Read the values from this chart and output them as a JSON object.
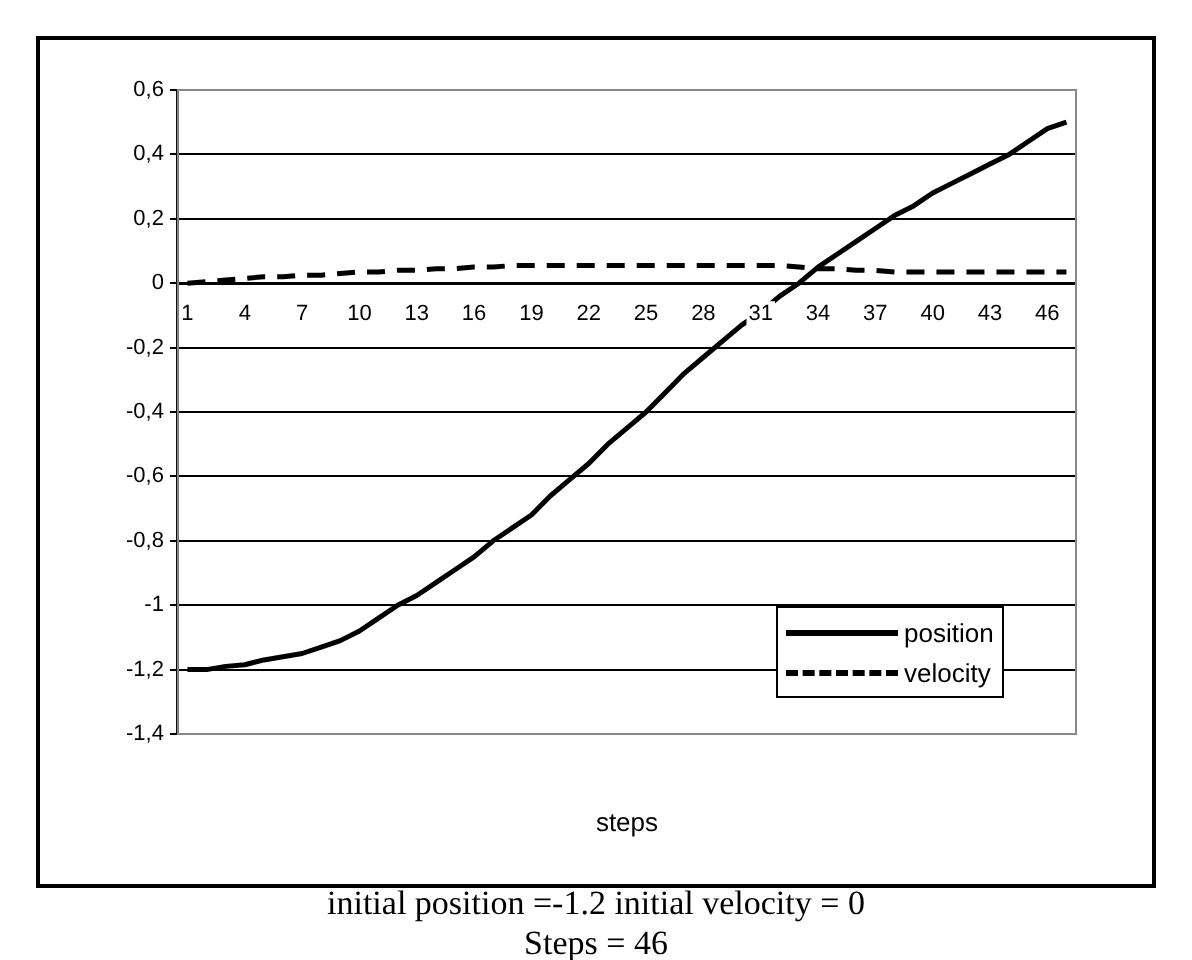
{
  "chart_data": {
    "type": "line",
    "xlabel": "steps",
    "categories": [
      "1",
      null,
      null,
      "4",
      null,
      null,
      "7",
      null,
      null,
      "10",
      null,
      null,
      "13",
      null,
      null,
      "16",
      null,
      null,
      "19",
      null,
      null,
      "22",
      null,
      null,
      "25",
      null,
      null,
      "28",
      null,
      null,
      "31",
      null,
      null,
      "34",
      null,
      null,
      "37",
      null,
      null,
      "40",
      null,
      null,
      "43",
      null,
      null,
      "46",
      null
    ],
    "series": [
      {
        "name": "position",
        "color": "#000000",
        "line_style": "solid",
        "values": [
          -1.2,
          -1.2,
          -1.19,
          -1.185,
          -1.17,
          -1.16,
          -1.15,
          -1.13,
          -1.11,
          -1.08,
          -1.04,
          -1.0,
          -0.97,
          -0.93,
          -0.89,
          -0.85,
          -0.8,
          -0.76,
          -0.72,
          -0.66,
          -0.61,
          -0.56,
          -0.5,
          -0.45,
          -0.4,
          -0.34,
          -0.28,
          -0.23,
          -0.18,
          -0.13,
          -0.09,
          -0.04,
          0,
          0.05,
          0.09,
          0.13,
          0.17,
          0.21,
          0.24,
          0.28,
          0.31,
          0.34,
          0.37,
          0.4,
          0.44,
          0.48,
          0.5
        ]
      },
      {
        "name": "velocity",
        "color": "#000000",
        "line_style": "dashed",
        "values": [
          0,
          0.005,
          0.01,
          0.015,
          0.02,
          0.02,
          0.025,
          0.025,
          0.03,
          0.035,
          0.035,
          0.04,
          0.04,
          0.045,
          0.045,
          0.05,
          0.05,
          0.055,
          0.055,
          0.055,
          0.055,
          0.055,
          0.055,
          0.055,
          0.055,
          0.055,
          0.055,
          0.055,
          0.055,
          0.055,
          0.055,
          0.055,
          0.05,
          0.045,
          0.045,
          0.04,
          0.04,
          0.035,
          0.035,
          0.035,
          0.035,
          0.035,
          0.035,
          0.035,
          0.035,
          0.035,
          0.035
        ]
      }
    ],
    "ylim": [
      -1.4,
      0.6
    ],
    "yticks": [
      {
        "value": -1.4,
        "label": "-1,4"
      },
      {
        "value": -1.2,
        "label": "-1,2"
      },
      {
        "value": -1,
        "label": "-1"
      },
      {
        "value": -0.8,
        "label": "-0,8"
      },
      {
        "value": -0.6,
        "label": "-0,6"
      },
      {
        "value": -0.4,
        "label": "-0,4"
      },
      {
        "value": -0.2,
        "label": "-0,2"
      },
      0,
      {
        "value": 0.2,
        "label": "0,2"
      },
      {
        "value": 0.4,
        "label": "0,4"
      },
      {
        "value": 0.6,
        "label": "0,6"
      }
    ],
    "grid": "y",
    "legend": "bottom right",
    "marker": "none",
    "annotations": [
      "initial position =-1.2 initial velocity = 0",
      "Steps = 46"
    ]
  }
}
